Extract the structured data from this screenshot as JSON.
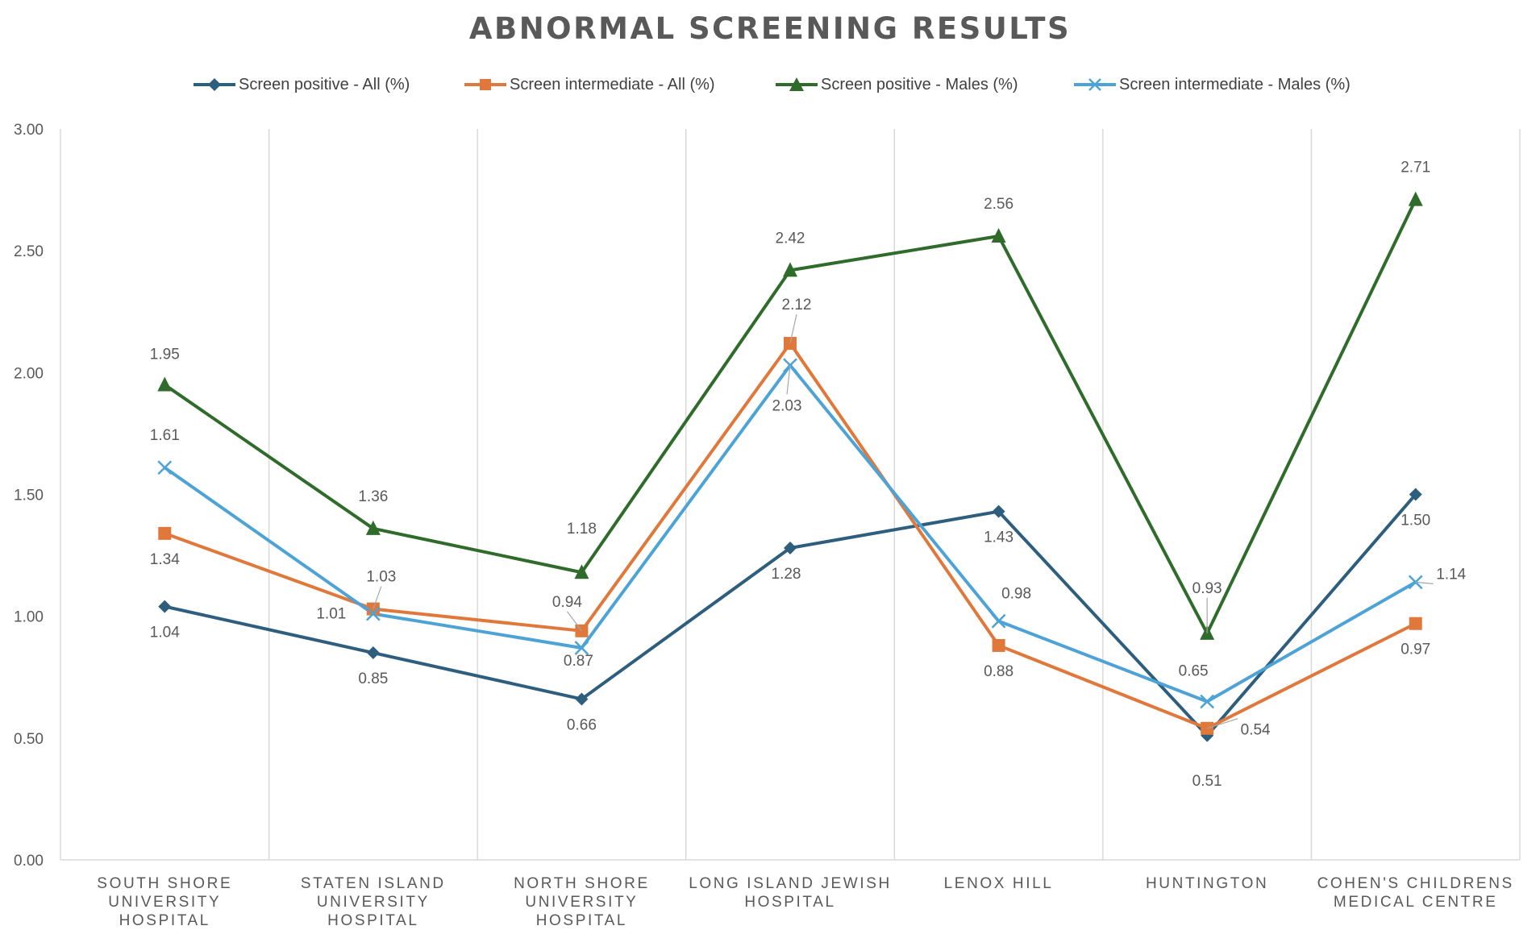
{
  "chart_data": {
    "type": "line",
    "title": "ABNORMAL SCREENING RESULTS",
    "xlabel": "",
    "ylabel": "",
    "ylim": [
      0,
      3
    ],
    "y_ticks": [
      "0.00",
      "0.50",
      "1.00",
      "1.50",
      "2.00",
      "2.50",
      "3.00"
    ],
    "categories": [
      [
        "SOUTH SHORE",
        "UNIVERSITY HOSPITAL"
      ],
      [
        "STATEN ISLAND",
        "UNIVERSITY HOSPITAL"
      ],
      [
        "NORTH SHORE",
        "UNIVERSITY HOSPITAL"
      ],
      [
        "LONG ISLAND JEWISH",
        "HOSPITAL"
      ],
      [
        "LENOX HILL"
      ],
      [
        "HUNTINGTON"
      ],
      [
        "COHEN'S CHILDRENS",
        "MEDICAL CENTRE"
      ]
    ],
    "grid": "vertical",
    "legend_position": "top",
    "series": [
      {
        "name": "Screen positive - All (%)",
        "color": "#2E5E7E",
        "marker": "diamond",
        "values": [
          1.04,
          0.85,
          0.66,
          1.28,
          1.43,
          0.51,
          1.5
        ],
        "labels": [
          "1.04",
          "0.85",
          "0.66",
          "1.28",
          "1.43",
          "0.51",
          "1.50"
        ]
      },
      {
        "name": "Screen intermediate - All (%)",
        "color": "#E0783C",
        "marker": "square",
        "values": [
          1.34,
          1.03,
          0.94,
          2.12,
          0.88,
          0.54,
          0.97
        ],
        "labels": [
          "1.34",
          "1.03",
          "0.94",
          "2.12",
          "0.88",
          "0.54",
          "0.97"
        ]
      },
      {
        "name": "Screen positive - Males (%)",
        "color": "#2F6B2A",
        "marker": "triangle",
        "values": [
          1.95,
          1.36,
          1.18,
          2.42,
          2.56,
          0.93,
          2.71
        ],
        "labels": [
          "1.95",
          "1.36",
          "1.18",
          "2.42",
          "2.56",
          "0.93",
          "2.71"
        ]
      },
      {
        "name": "Screen intermediate - Males (%)",
        "color": "#4EA3D6",
        "marker": "x",
        "values": [
          1.61,
          1.01,
          0.87,
          2.03,
          0.98,
          0.65,
          1.14
        ],
        "labels": [
          "1.61",
          "1.01",
          "0.87",
          "2.03",
          "0.98",
          "0.65",
          "1.14"
        ]
      }
    ]
  }
}
